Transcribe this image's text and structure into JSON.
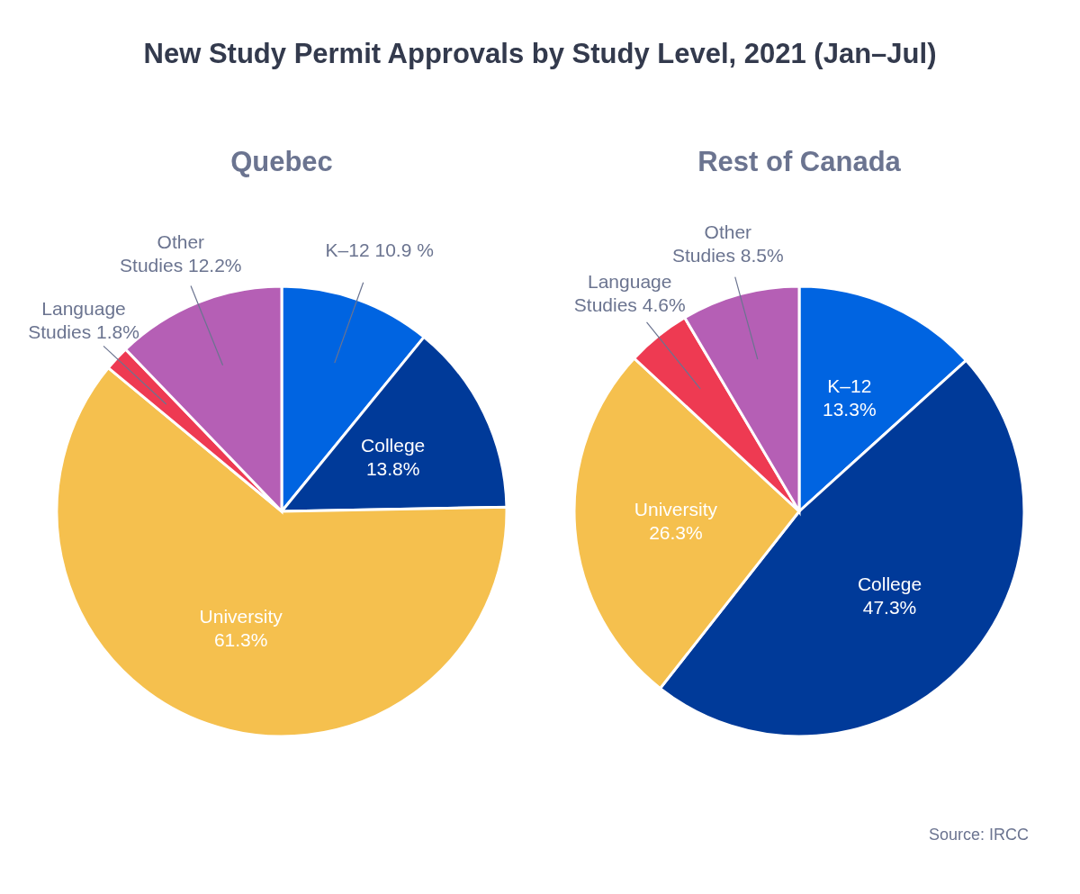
{
  "chart_data": [
    {
      "type": "pie",
      "title": "New Study Permit Approvals by Study Level, 2021 (Jan–Jul)",
      "subtitle": "Quebec",
      "categories": [
        "K–12",
        "College",
        "University",
        "Language Studies",
        "Other Studies"
      ],
      "values": [
        10.9,
        13.8,
        61.3,
        1.8,
        12.2
      ],
      "value_labels": [
        "10.9 %",
        "13.8%",
        "61.3%",
        "1.8%",
        "12.2%"
      ],
      "colors": [
        "#0064e1",
        "#003a99",
        "#f5c04e",
        "#ee3a52",
        "#b55fb5"
      ]
    },
    {
      "type": "pie",
      "subtitle": "Rest of Canada",
      "categories": [
        "K–12",
        "College",
        "University",
        "Language Studies",
        "Other Studies"
      ],
      "values": [
        13.3,
        47.3,
        26.3,
        4.6,
        8.5
      ],
      "value_labels": [
        "13.3%",
        "47.3%",
        "26.3%",
        "4.6%",
        "8.5%"
      ],
      "colors": [
        "#0064e1",
        "#003a99",
        "#f5c04e",
        "#ee3a52",
        "#b55fb5"
      ],
      "annotations": [
        "Source: IRCC"
      ]
    }
  ]
}
